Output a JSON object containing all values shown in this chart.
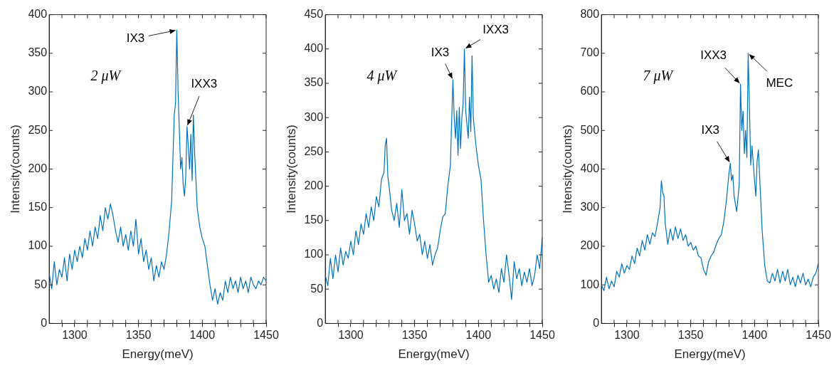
{
  "chart_data": [
    {
      "type": "line",
      "xlabel": "Energy(meV)",
      "ylabel": "Intensity(counts)",
      "color": "#0072bd",
      "xlim": [
        1280,
        1450
      ],
      "ylim": [
        0,
        400
      ],
      "xticks": [
        {
          "value": 1290,
          "label": null
        },
        1300,
        {
          "value": 1310,
          "label": null
        },
        {
          "value": 1320,
          "label": null
        },
        {
          "value": 1330,
          "label": null
        },
        {
          "value": 1340,
          "label": null
        },
        1350,
        {
          "value": 1360,
          "label": null
        },
        {
          "value": 1370,
          "label": null
        },
        {
          "value": 1380,
          "label": null
        },
        {
          "value": 1390,
          "label": null
        },
        1400,
        {
          "value": 1410,
          "label": null
        },
        {
          "value": 1420,
          "label": null
        },
        {
          "value": 1430,
          "label": null
        },
        {
          "value": 1440,
          "label": null
        },
        1450
      ],
      "yticks": [
        0,
        50,
        100,
        150,
        200,
        250,
        300,
        350,
        400
      ],
      "x": [
        1280,
        1282,
        1284,
        1286,
        1288,
        1290,
        1292,
        1294,
        1296,
        1298,
        1300,
        1302,
        1304,
        1306,
        1308,
        1310,
        1312,
        1314,
        1316,
        1318,
        1320,
        1322,
        1324,
        1326,
        1328,
        1330,
        1332,
        1334,
        1336,
        1338,
        1340,
        1342,
        1344,
        1346,
        1348,
        1350,
        1352,
        1354,
        1356,
        1358,
        1360,
        1362,
        1364,
        1366,
        1368,
        1370,
        1372,
        1374,
        1376,
        1378,
        1379,
        1380,
        1381,
        1382,
        1383,
        1384,
        1385,
        1386,
        1387,
        1388,
        1389,
        1390,
        1391,
        1392,
        1393,
        1394,
        1396,
        1398,
        1400,
        1402,
        1404,
        1406,
        1408,
        1410,
        1412,
        1414,
        1416,
        1418,
        1420,
        1422,
        1424,
        1426,
        1428,
        1430,
        1432,
        1434,
        1436,
        1438,
        1440,
        1442,
        1444,
        1446,
        1448,
        1450
      ],
      "values": [
        65,
        45,
        80,
        50,
        70,
        60,
        85,
        55,
        90,
        70,
        95,
        80,
        100,
        85,
        110,
        95,
        120,
        100,
        125,
        110,
        140,
        120,
        150,
        135,
        155,
        140,
        120,
        105,
        125,
        100,
        115,
        95,
        120,
        100,
        135,
        90,
        110,
        80,
        95,
        70,
        85,
        55,
        75,
        60,
        80,
        70,
        90,
        120,
        160,
        270,
        285,
        380,
        300,
        250,
        200,
        215,
        180,
        165,
        190,
        255,
        230,
        200,
        245,
        185,
        270,
        220,
        150,
        125,
        110,
        100,
        75,
        50,
        30,
        45,
        25,
        40,
        30,
        55,
        40,
        60,
        45,
        55,
        40,
        60,
        45,
        55,
        40,
        60,
        50,
        45,
        55,
        50,
        60,
        55
      ],
      "annotations": [
        "2 μW",
        {
          "text": "IX3",
          "x": 1380,
          "y": 380
        },
        {
          "text": "IXX3",
          "x": 1388,
          "y": 255
        }
      ]
    },
    {
      "type": "line",
      "xlabel": "Energy(meV)",
      "ylabel": "Intensity(counts)",
      "color": "#0072bd",
      "xlim": [
        1280,
        1450
      ],
      "ylim": [
        0,
        450
      ],
      "xticks": [
        {
          "value": 1290,
          "label": null
        },
        1300,
        {
          "value": 1310,
          "label": null
        },
        {
          "value": 1320,
          "label": null
        },
        {
          "value": 1330,
          "label": null
        },
        {
          "value": 1340,
          "label": null
        },
        1350,
        {
          "value": 1360,
          "label": null
        },
        {
          "value": 1370,
          "label": null
        },
        {
          "value": 1380,
          "label": null
        },
        {
          "value": 1390,
          "label": null
        },
        1400,
        {
          "value": 1410,
          "label": null
        },
        {
          "value": 1420,
          "label": null
        },
        {
          "value": 1430,
          "label": null
        },
        {
          "value": 1440,
          "label": null
        },
        1450
      ],
      "yticks": [
        0,
        50,
        100,
        150,
        200,
        250,
        300,
        350,
        400,
        450
      ],
      "x": [
        1280,
        1282,
        1284,
        1286,
        1288,
        1290,
        1292,
        1294,
        1296,
        1298,
        1300,
        1302,
        1304,
        1306,
        1308,
        1310,
        1312,
        1314,
        1316,
        1318,
        1320,
        1322,
        1324,
        1326,
        1327,
        1328,
        1329,
        1330,
        1332,
        1334,
        1336,
        1338,
        1340,
        1342,
        1344,
        1346,
        1348,
        1350,
        1352,
        1354,
        1356,
        1358,
        1360,
        1362,
        1364,
        1366,
        1368,
        1370,
        1372,
        1374,
        1376,
        1378,
        1380,
        1381,
        1382,
        1383,
        1384,
        1385,
        1386,
        1387,
        1388,
        1389,
        1390,
        1391,
        1392,
        1393,
        1394,
        1395,
        1396,
        1398,
        1400,
        1402,
        1404,
        1406,
        1408,
        1410,
        1412,
        1414,
        1416,
        1418,
        1420,
        1422,
        1424,
        1426,
        1428,
        1430,
        1432,
        1434,
        1436,
        1438,
        1440,
        1442,
        1444,
        1446,
        1448,
        1450
      ],
      "values": [
        70,
        55,
        95,
        65,
        100,
        75,
        110,
        85,
        105,
        95,
        120,
        100,
        135,
        115,
        145,
        130,
        160,
        140,
        170,
        150,
        185,
        170,
        210,
        220,
        260,
        270,
        215,
        200,
        165,
        150,
        175,
        140,
        195,
        150,
        160,
        130,
        165,
        145,
        120,
        130,
        100,
        120,
        95,
        115,
        85,
        100,
        110,
        135,
        155,
        160,
        200,
        230,
        355,
        300,
        270,
        310,
        245,
        315,
        255,
        300,
        320,
        400,
        310,
        290,
        270,
        330,
        280,
        390,
        300,
        260,
        230,
        210,
        150,
        100,
        60,
        70,
        50,
        65,
        45,
        80,
        60,
        100,
        70,
        35,
        90,
        65,
        80,
        55,
        75,
        60,
        80,
        55,
        70,
        100,
        80,
        125
      ],
      "annotations": [
        "4 μW",
        {
          "text": "IX3",
          "x": 1380,
          "y": 355
        },
        {
          "text": "IXX3",
          "x": 1389,
          "y": 400
        }
      ]
    },
    {
      "type": "line",
      "xlabel": "Energy(meV)",
      "ylabel": "Intensity(counts)",
      "color": "#0072bd",
      "xlim": [
        1280,
        1450
      ],
      "ylim": [
        0,
        800
      ],
      "xticks": [
        {
          "value": 1290,
          "label": null
        },
        1300,
        {
          "value": 1310,
          "label": null
        },
        {
          "value": 1320,
          "label": null
        },
        {
          "value": 1330,
          "label": null
        },
        {
          "value": 1340,
          "label": null
        },
        1350,
        {
          "value": 1360,
          "label": null
        },
        {
          "value": 1370,
          "label": null
        },
        {
          "value": 1380,
          "label": null
        },
        {
          "value": 1390,
          "label": null
        },
        1400,
        {
          "value": 1410,
          "label": null
        },
        {
          "value": 1420,
          "label": null
        },
        {
          "value": 1430,
          "label": null
        },
        {
          "value": 1440,
          "label": null
        },
        1450
      ],
      "yticks": [
        0,
        100,
        200,
        300,
        400,
        500,
        600,
        700,
        800
      ],
      "x": [
        1280,
        1282,
        1284,
        1286,
        1288,
        1290,
        1292,
        1294,
        1296,
        1298,
        1300,
        1302,
        1304,
        1306,
        1308,
        1310,
        1312,
        1314,
        1316,
        1318,
        1320,
        1322,
        1324,
        1326,
        1327,
        1328,
        1329,
        1330,
        1332,
        1334,
        1336,
        1338,
        1340,
        1342,
        1344,
        1346,
        1348,
        1350,
        1352,
        1354,
        1356,
        1358,
        1360,
        1362,
        1364,
        1366,
        1368,
        1370,
        1372,
        1374,
        1376,
        1378,
        1380,
        1381,
        1382,
        1383,
        1384,
        1386,
        1388,
        1389,
        1390,
        1391,
        1392,
        1393,
        1394,
        1395,
        1396,
        1397,
        1398,
        1400,
        1401,
        1402,
        1403,
        1404,
        1406,
        1408,
        1410,
        1412,
        1414,
        1416,
        1418,
        1420,
        1422,
        1424,
        1426,
        1428,
        1430,
        1432,
        1434,
        1436,
        1438,
        1440,
        1442,
        1444,
        1446,
        1448,
        1450
      ],
      "values": [
        100,
        85,
        120,
        90,
        110,
        95,
        135,
        120,
        155,
        130,
        150,
        140,
        175,
        155,
        195,
        175,
        215,
        190,
        230,
        205,
        235,
        225,
        260,
        300,
        370,
        340,
        330,
        260,
        205,
        245,
        215,
        250,
        220,
        245,
        215,
        230,
        200,
        210,
        190,
        200,
        175,
        170,
        140,
        125,
        160,
        175,
        185,
        205,
        220,
        230,
        265,
        320,
        390,
        415,
        370,
        385,
        330,
        290,
        360,
        620,
        500,
        550,
        440,
        500,
        430,
        700,
        560,
        410,
        460,
        370,
        330,
        420,
        450,
        380,
        240,
        150,
        110,
        105,
        130,
        110,
        140,
        105,
        135,
        110,
        140,
        100,
        120,
        95,
        125,
        105,
        130,
        100,
        115,
        95,
        120,
        130,
        155
      ],
      "annotations": [
        "7 μW",
        {
          "text": "IXX3",
          "x": 1389,
          "y": 620
        },
        {
          "text": "MEC",
          "x": 1395,
          "y": 700
        },
        {
          "text": "IX3",
          "x": 1381,
          "y": 415
        }
      ]
    }
  ]
}
